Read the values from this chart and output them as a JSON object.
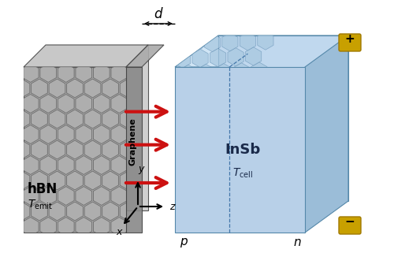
{
  "bg_color": "#ffffff",
  "emitter_face_color": "#a8a8a8",
  "emitter_top_color": "#c8c8c8",
  "emitter_side_color": "#bebebe",
  "cell_face_color": "#b8d0e8",
  "cell_top_color": "#d0e5f5",
  "cell_right_color": "#9bbdd8",
  "cell_back_color": "#c5ddf0",
  "graphene_color": "#909090",
  "honeycomb_fill_emitter": "#b0b0b0",
  "honeycomb_edge_emitter": "#606060",
  "honeycomb_fill_cell": "#a8c8e0",
  "honeycomb_edge_cell": "#7099bb",
  "arrow_color": "#cc1111",
  "gold_color": "#c8a000",
  "gold_edge": "#a07800",
  "axis_color": "#111111",
  "hbn_label": "hBN",
  "temit_label": "$T_{\\mathrm{emit}}$",
  "insb_label": "InSb",
  "tcell_label": "$T_{\\mathrm{cell}}$",
  "graphene_label": "Graphene",
  "d_label": "$d$",
  "p_label": "$p$",
  "n_label": "$n$",
  "plus_label": "+",
  "minus_label": "−",
  "y_label": "y",
  "z_label": "z",
  "x_label": "x"
}
